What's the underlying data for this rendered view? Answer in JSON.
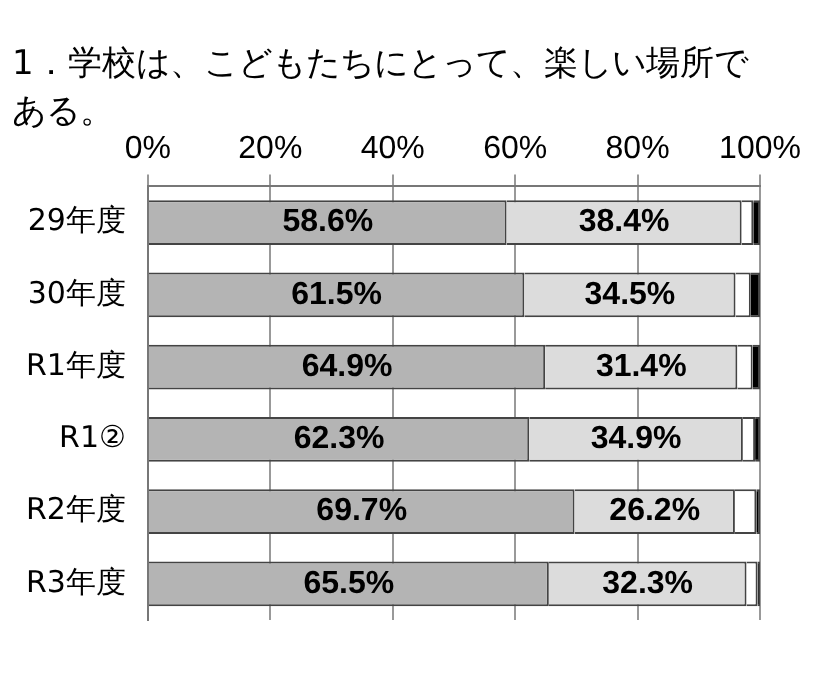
{
  "chart_data": {
    "type": "bar",
    "orientation": "horizontal",
    "stacked": true,
    "title": "1．学校は、こどもたちにとって、楽しい場所である。",
    "categories": [
      "29年度",
      "30年度",
      "R1年度",
      "R1②",
      "R2年度",
      "R3年度"
    ],
    "series": [
      {
        "color": "#b4b4b4",
        "values": [
          58.6,
          61.5,
          64.9,
          62.3,
          69.7,
          65.5
        ],
        "value_labels": [
          "58.6%",
          "61.5%",
          "64.9%",
          "62.3%",
          "69.7%",
          "65.5%"
        ]
      },
      {
        "color": "#dcdcdc",
        "values": [
          38.4,
          34.5,
          31.4,
          34.9,
          26.2,
          32.3
        ],
        "value_labels": [
          "38.4%",
          "34.5%",
          "31.4%",
          "34.9%",
          "26.2%",
          "32.3%"
        ]
      },
      {
        "color": "#ffffff",
        "values": [
          1.9,
          2.5,
          2.5,
          2.0,
          3.5,
          1.8
        ]
      },
      {
        "color": "#000000",
        "values": [
          1.1,
          1.5,
          1.2,
          0.8,
          0.6,
          0.4
        ]
      }
    ],
    "xlim": [
      0,
      100
    ],
    "xticks": [
      {
        "value": 0,
        "label": "0%"
      },
      {
        "value": 20,
        "label": "20%"
      },
      {
        "value": 40,
        "label": "40%"
      },
      {
        "value": 60,
        "label": "60%"
      },
      {
        "value": 80,
        "label": "80%"
      },
      {
        "value": 100,
        "label": "100%"
      }
    ],
    "grid": "x",
    "legend": false
  }
}
